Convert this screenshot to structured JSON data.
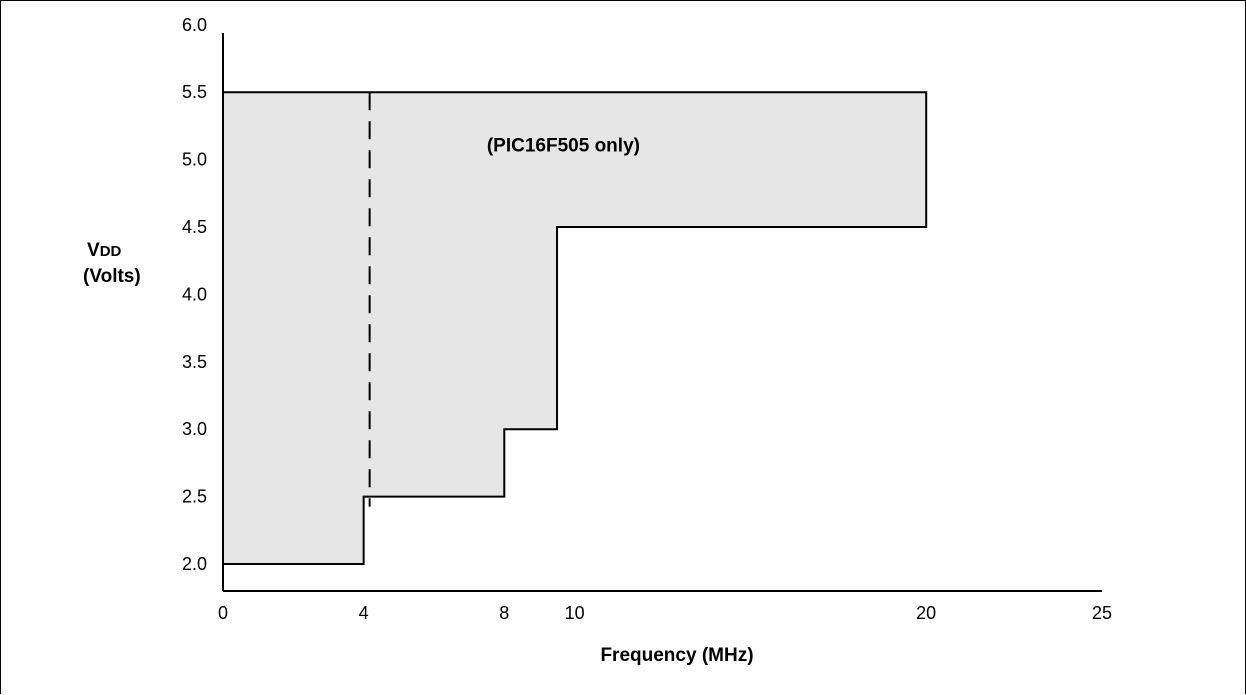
{
  "chart_data": {
    "type": "area",
    "xlabel": "Frequency (MHz)",
    "ylabel": {
      "main": "V",
      "subscript": "DD",
      "units": "(Volts)"
    },
    "xticks": [
      0,
      4,
      8,
      10,
      20,
      25
    ],
    "yticks": [
      "2.0",
      "2.5",
      "3.0",
      "3.5",
      "4.0",
      "4.5",
      "5.0",
      "5.5",
      "6.0"
    ],
    "xlim": [
      0,
      25
    ],
    "ylim": [
      2.0,
      6.0
    ],
    "operating_region": {
      "x": [
        0,
        4,
        4,
        8,
        8,
        9.5,
        9.5,
        20,
        20,
        0
      ],
      "y": [
        2.0,
        2.0,
        2.5,
        2.5,
        3.0,
        3.0,
        4.5,
        4.5,
        5.5,
        5.5
      ]
    },
    "dashed_line": {
      "x": 4,
      "y_range": [
        2.5,
        5.5
      ]
    },
    "annotation": {
      "text": "(PIC16F505 only)",
      "x": 8.5,
      "y": 5.1
    },
    "fill_color": "#e6e6e6",
    "line_color": "#000000",
    "grid": false,
    "legend": "none"
  }
}
